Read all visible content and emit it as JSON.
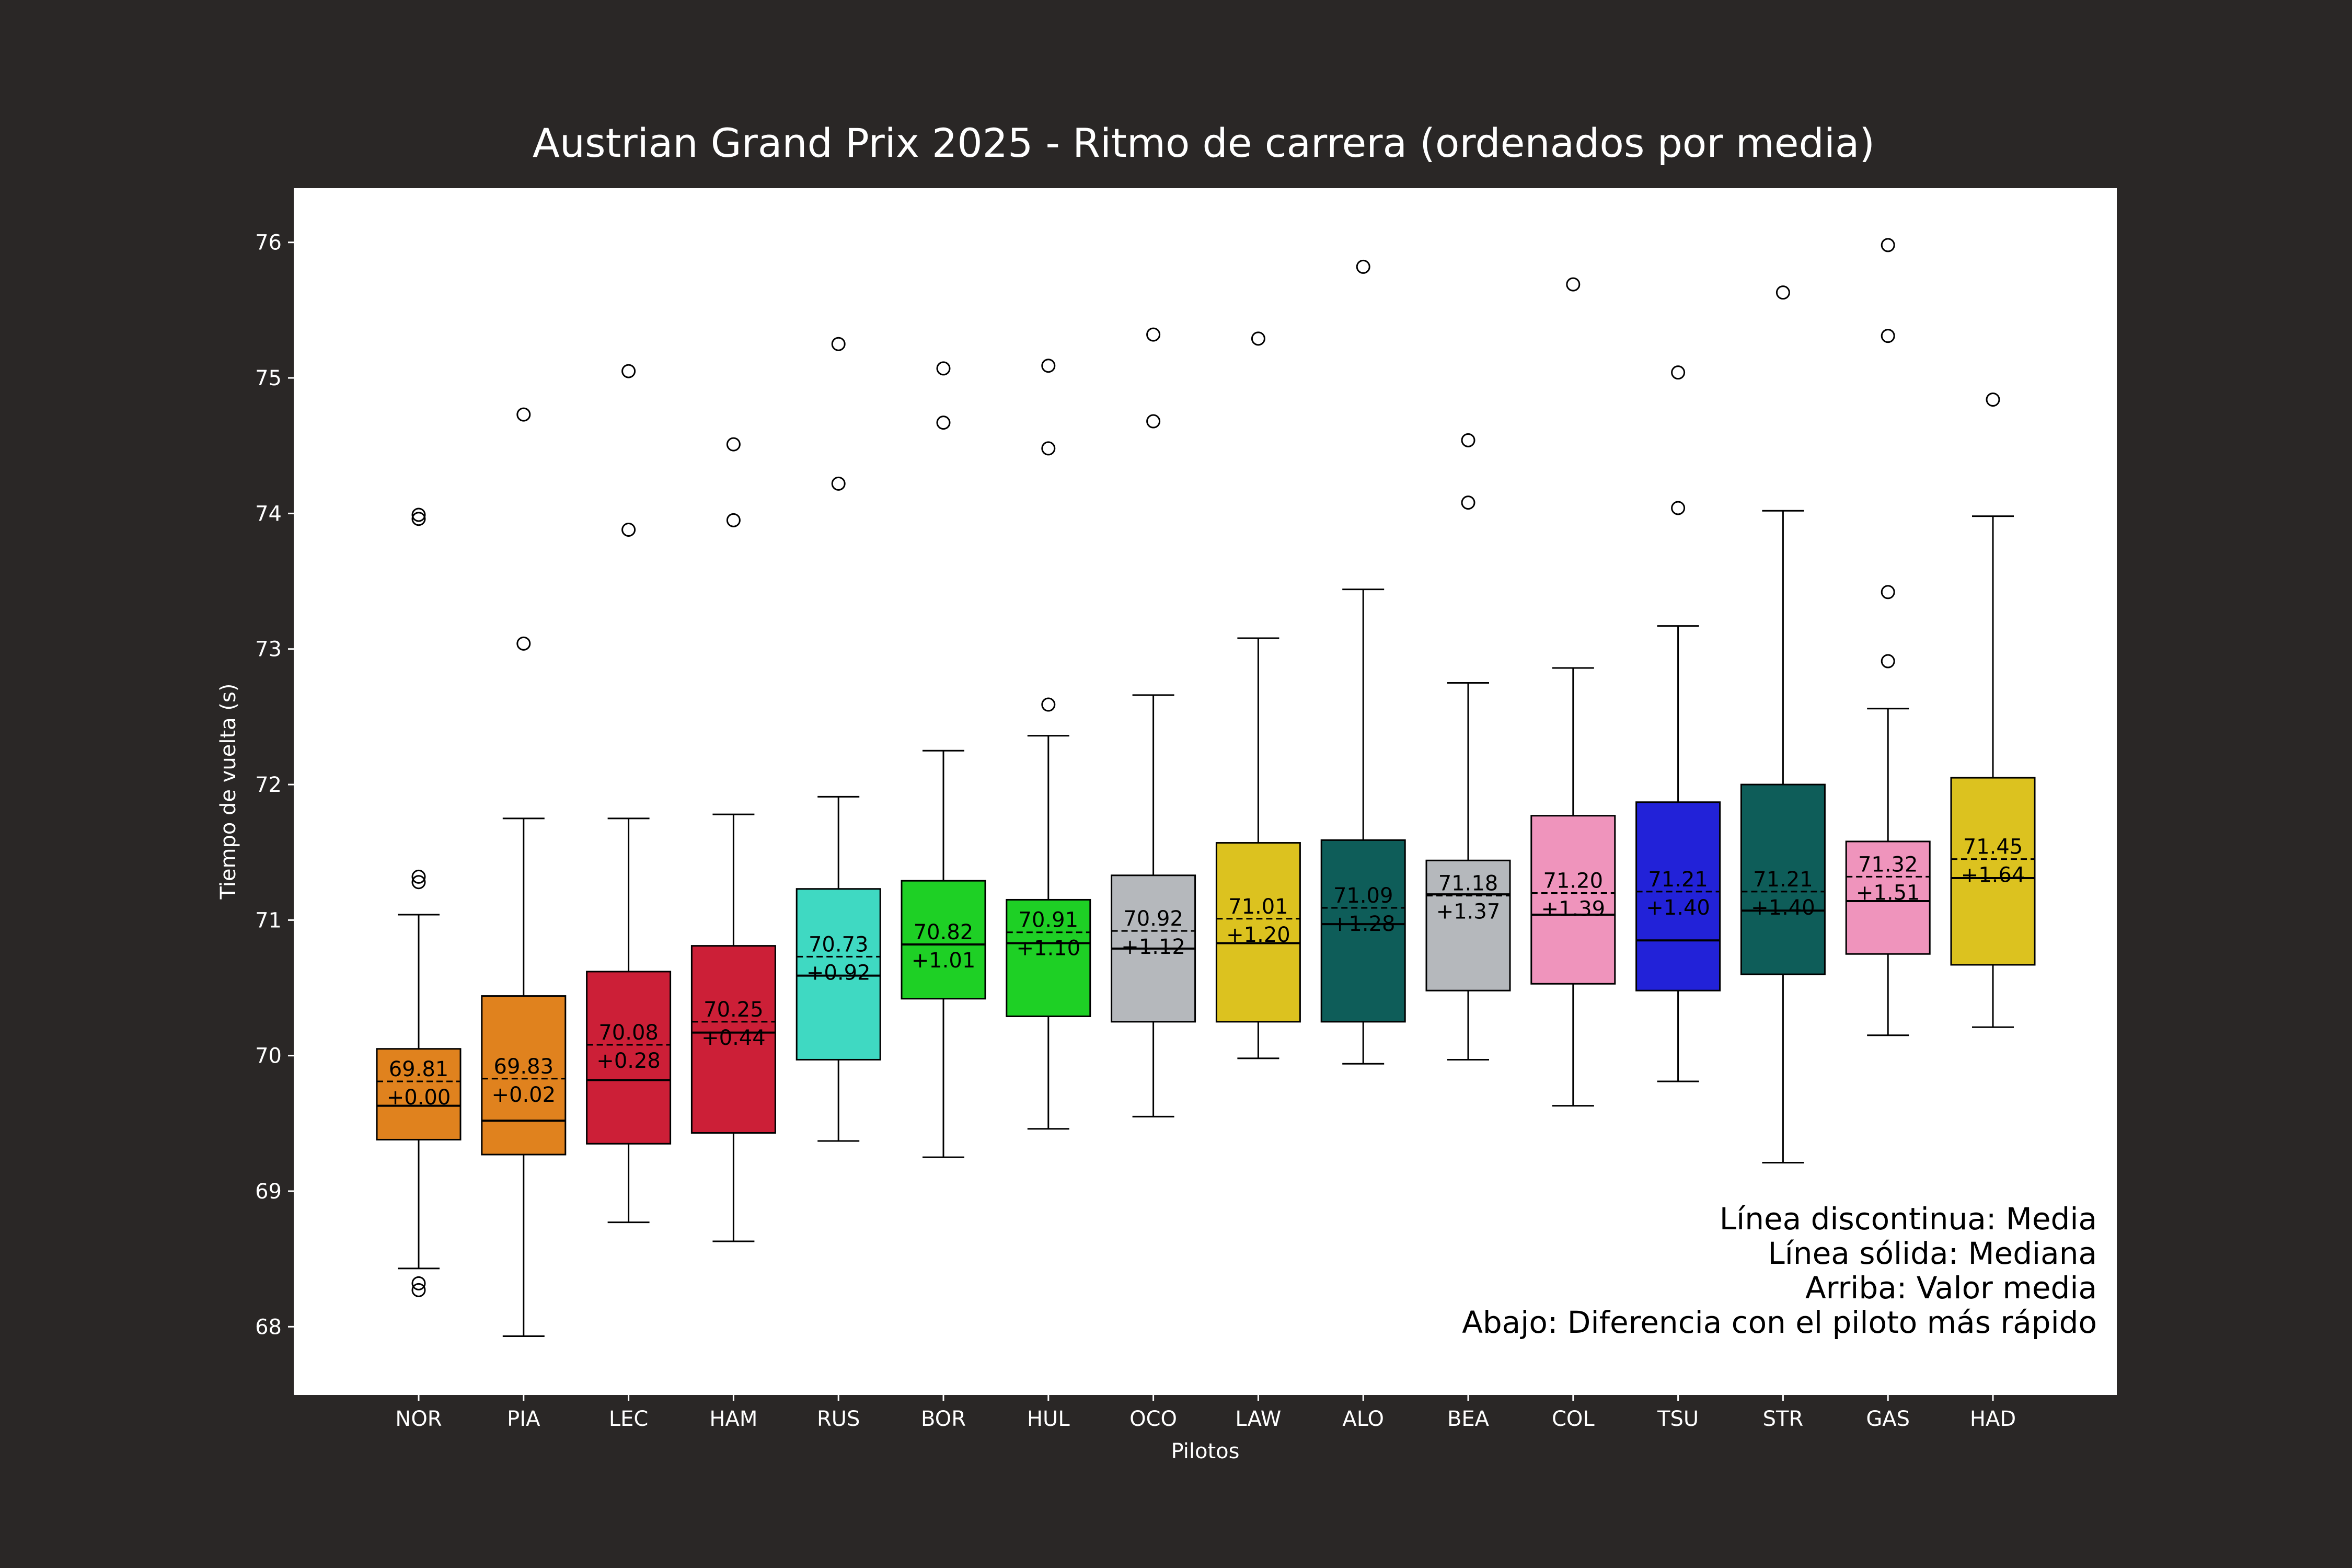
{
  "chart_data": {
    "type": "box",
    "title": "Austrian Grand Prix 2025 - Ritmo de carrera (ordenados por media)",
    "xlabel": "Pilotos",
    "ylabel": "Tiempo de vuelta (s)",
    "ylim": [
      67.5,
      76.4
    ],
    "yticks": [
      "68",
      "69",
      "70",
      "71",
      "72",
      "73",
      "74",
      "75",
      "76"
    ],
    "grid": false,
    "legend_position": "bottom-right",
    "legend": [
      "Línea discontinua: Media",
      "Línea sólida: Mediana",
      "Arriba: Valor media",
      "Abajo: Diferencia con el piloto más rápido"
    ],
    "colors": {
      "figure_background": "#2a2726",
      "plot_background": "#ffffff",
      "text_light": "#ffffff",
      "line": "#000000"
    },
    "series": [
      {
        "driver": "NOR",
        "color": "#e0821e",
        "whisker_low": 68.43,
        "q1": 69.38,
        "median": 69.63,
        "q3": 70.05,
        "whisker_high": 71.04,
        "mean": 69.81,
        "mean_label": "69.81",
        "delta_label": "+0.00",
        "outliers": [
          68.27,
          68.32,
          71.28,
          71.32,
          73.96,
          73.99
        ]
      },
      {
        "driver": "PIA",
        "color": "#e0821e",
        "whisker_low": 67.93,
        "q1": 69.27,
        "median": 69.52,
        "q3": 70.44,
        "whisker_high": 71.75,
        "mean": 69.83,
        "mean_label": "69.83",
        "delta_label": "+0.02",
        "outliers": [
          73.04,
          74.73
        ]
      },
      {
        "driver": "LEC",
        "color": "#cc1f37",
        "whisker_low": 68.77,
        "q1": 69.35,
        "median": 69.82,
        "q3": 70.62,
        "whisker_high": 71.75,
        "mean": 70.08,
        "mean_label": "70.08",
        "delta_label": "+0.28",
        "outliers": [
          73.88,
          75.05
        ]
      },
      {
        "driver": "HAM",
        "color": "#cc1f37",
        "whisker_low": 68.63,
        "q1": 69.43,
        "median": 70.17,
        "q3": 70.81,
        "whisker_high": 71.78,
        "mean": 70.25,
        "mean_label": "70.25",
        "delta_label": "+0.44",
        "outliers": [
          73.95,
          74.51
        ]
      },
      {
        "driver": "RUS",
        "color": "#3fd9c2",
        "whisker_low": 69.37,
        "q1": 69.97,
        "median": 70.59,
        "q3": 71.23,
        "whisker_high": 71.91,
        "mean": 70.73,
        "mean_label": "70.73",
        "delta_label": "+0.92",
        "outliers": [
          74.22,
          75.25
        ]
      },
      {
        "driver": "BOR",
        "color": "#1ed025",
        "whisker_low": 69.25,
        "q1": 70.42,
        "median": 70.82,
        "q3": 71.29,
        "whisker_high": 72.25,
        "mean": 70.82,
        "mean_label": "70.82",
        "delta_label": "+1.01",
        "outliers": [
          74.67,
          75.07
        ]
      },
      {
        "driver": "HUL",
        "color": "#1ed025",
        "whisker_low": 69.46,
        "q1": 70.29,
        "median": 70.83,
        "q3": 71.15,
        "whisker_high": 72.36,
        "mean": 70.91,
        "mean_label": "70.91",
        "delta_label": "+1.10",
        "outliers": [
          72.59,
          74.48,
          75.09
        ]
      },
      {
        "driver": "OCO",
        "color": "#b5b8bc",
        "whisker_low": 69.55,
        "q1": 70.25,
        "median": 70.79,
        "q3": 71.33,
        "whisker_high": 72.66,
        "mean": 70.92,
        "mean_label": "70.92",
        "delta_label": "+1.12",
        "outliers": [
          74.68,
          75.32
        ]
      },
      {
        "driver": "LAW",
        "color": "#dcc21f",
        "whisker_low": 69.98,
        "q1": 70.25,
        "median": 70.83,
        "q3": 71.57,
        "whisker_high": 73.08,
        "mean": 71.01,
        "mean_label": "71.01",
        "delta_label": "+1.20",
        "outliers": [
          75.29
        ]
      },
      {
        "driver": "ALO",
        "color": "#0e5d59",
        "whisker_low": 69.94,
        "q1": 70.25,
        "median": 70.97,
        "q3": 71.59,
        "whisker_high": 73.44,
        "mean": 71.09,
        "mean_label": "71.09",
        "delta_label": "+1.28",
        "outliers": [
          75.82
        ]
      },
      {
        "driver": "BEA",
        "color": "#b5b8bc",
        "whisker_low": 69.97,
        "q1": 70.48,
        "median": 71.19,
        "q3": 71.44,
        "whisker_high": 72.75,
        "mean": 71.18,
        "mean_label": "71.18",
        "delta_label": "+1.37",
        "outliers": [
          74.08,
          74.54
        ]
      },
      {
        "driver": "COL",
        "color": "#ef94bc",
        "whisker_low": 69.63,
        "q1": 70.53,
        "median": 71.04,
        "q3": 71.77,
        "whisker_high": 72.86,
        "mean": 71.2,
        "mean_label": "71.20",
        "delta_label": "+1.39",
        "outliers": [
          75.69
        ]
      },
      {
        "driver": "TSU",
        "color": "#2222d8",
        "whisker_low": 69.81,
        "q1": 70.48,
        "median": 70.85,
        "q3": 71.87,
        "whisker_high": 73.17,
        "mean": 71.21,
        "mean_label": "71.21",
        "delta_label": "+1.40",
        "outliers": [
          74.04,
          75.04
        ]
      },
      {
        "driver": "STR",
        "color": "#0e5d59",
        "whisker_low": 69.21,
        "q1": 70.6,
        "median": 71.07,
        "q3": 72.0,
        "whisker_high": 74.02,
        "mean": 71.21,
        "mean_label": "71.21",
        "delta_label": "+1.40",
        "outliers": [
          75.63
        ]
      },
      {
        "driver": "GAS",
        "color": "#ef94bc",
        "whisker_low": 70.15,
        "q1": 70.75,
        "median": 71.14,
        "q3": 71.58,
        "whisker_high": 72.56,
        "mean": 71.32,
        "mean_label": "71.32",
        "delta_label": "+1.51",
        "outliers": [
          72.91,
          73.42,
          75.31,
          75.98
        ]
      },
      {
        "driver": "HAD",
        "color": "#dcc21f",
        "whisker_low": 70.21,
        "q1": 70.67,
        "median": 71.31,
        "q3": 72.05,
        "whisker_high": 73.98,
        "mean": 71.45,
        "mean_label": "71.45",
        "delta_label": "+1.64",
        "outliers": [
          74.84
        ]
      }
    ]
  }
}
